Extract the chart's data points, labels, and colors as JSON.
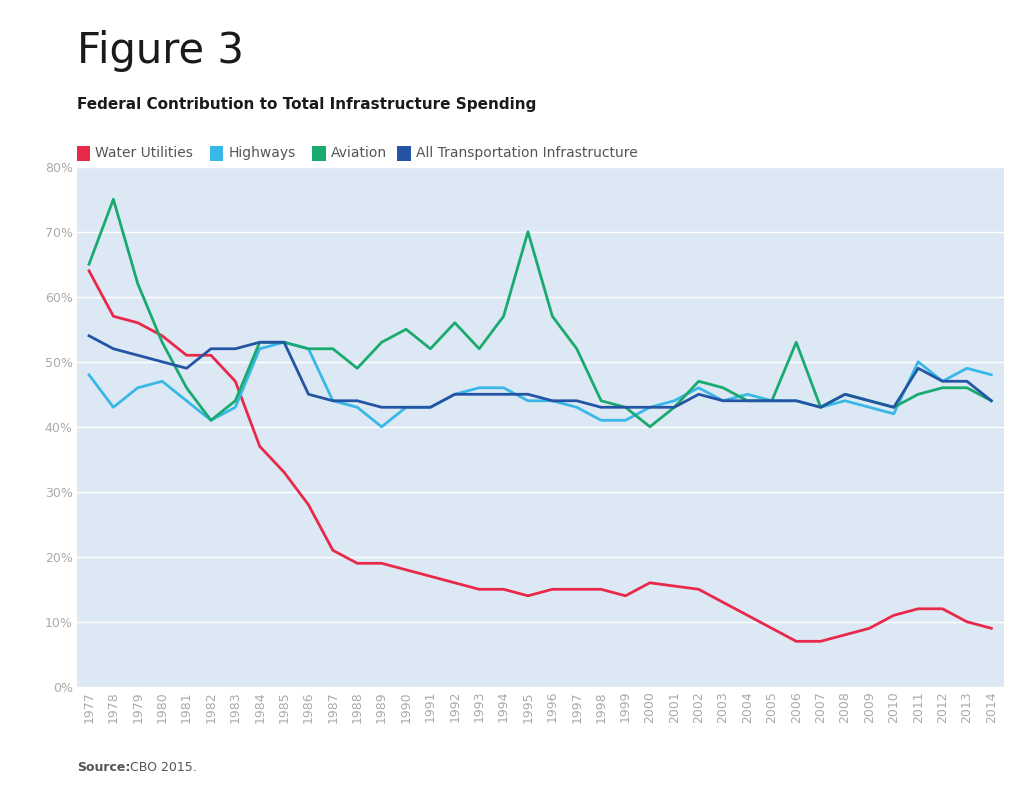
{
  "title": "Figure 3",
  "subtitle": "Federal Contribution to Total Infrastructure Spending",
  "source_bold": "Source:",
  "source_rest": " CBO 2015.",
  "years": [
    1977,
    1978,
    1979,
    1980,
    1981,
    1982,
    1983,
    1984,
    1985,
    1986,
    1987,
    1988,
    1989,
    1990,
    1991,
    1992,
    1993,
    1994,
    1995,
    1996,
    1997,
    1998,
    1999,
    2000,
    2001,
    2002,
    2003,
    2004,
    2005,
    2006,
    2007,
    2008,
    2009,
    2010,
    2011,
    2012,
    2013,
    2014
  ],
  "water_utilities": [
    0.64,
    0.57,
    0.56,
    0.54,
    0.51,
    0.51,
    0.47,
    0.37,
    0.33,
    0.28,
    0.21,
    0.19,
    0.19,
    0.18,
    0.17,
    0.16,
    0.15,
    0.15,
    0.14,
    0.15,
    0.15,
    0.15,
    0.14,
    0.16,
    0.155,
    0.15,
    0.13,
    0.11,
    0.09,
    0.07,
    0.07,
    0.08,
    0.09,
    0.11,
    0.12,
    0.12,
    0.1,
    0.09
  ],
  "highways": [
    0.48,
    0.43,
    0.46,
    0.47,
    0.44,
    0.41,
    0.43,
    0.52,
    0.53,
    0.52,
    0.44,
    0.43,
    0.4,
    0.43,
    0.43,
    0.45,
    0.46,
    0.46,
    0.44,
    0.44,
    0.43,
    0.41,
    0.41,
    0.43,
    0.44,
    0.46,
    0.44,
    0.45,
    0.44,
    0.44,
    0.43,
    0.44,
    0.43,
    0.42,
    0.5,
    0.47,
    0.49,
    0.48
  ],
  "aviation": [
    0.65,
    0.75,
    0.62,
    0.53,
    0.46,
    0.41,
    0.44,
    0.53,
    0.53,
    0.52,
    0.52,
    0.49,
    0.53,
    0.55,
    0.52,
    0.56,
    0.52,
    0.57,
    0.7,
    0.57,
    0.52,
    0.44,
    0.43,
    0.4,
    0.43,
    0.47,
    0.46,
    0.44,
    0.44,
    0.53,
    0.43,
    0.45,
    0.44,
    0.43,
    0.45,
    0.46,
    0.46,
    0.44
  ],
  "all_transport": [
    0.54,
    0.52,
    0.51,
    0.5,
    0.49,
    0.52,
    0.52,
    0.53,
    0.53,
    0.45,
    0.44,
    0.44,
    0.43,
    0.43,
    0.43,
    0.45,
    0.45,
    0.45,
    0.45,
    0.44,
    0.44,
    0.43,
    0.43,
    0.43,
    0.43,
    0.45,
    0.44,
    0.44,
    0.44,
    0.44,
    0.43,
    0.45,
    0.44,
    0.43,
    0.49,
    0.47,
    0.47,
    0.44
  ],
  "color_water": "#e8294a",
  "color_highways": "#39b8e8",
  "color_aviation": "#1aaa6e",
  "color_all_transport": "#2455a4",
  "bg_color": "#dce9f5",
  "fig_bg": "#ffffff",
  "line_width": 2.0,
  "ylim_min": 0.0,
  "ylim_max": 0.8,
  "yticks": [
    0.0,
    0.1,
    0.2,
    0.3,
    0.4,
    0.5,
    0.6,
    0.7,
    0.8
  ],
  "ytick_labels": [
    "0%",
    "10%",
    "20%",
    "30%",
    "40%",
    "50%",
    "60%",
    "70%",
    "80%"
  ],
  "title_fontsize": 30,
  "subtitle_fontsize": 11,
  "legend_fontsize": 10,
  "tick_fontsize": 9,
  "source_fontsize": 9,
  "legend_labels": [
    "Water Utilities",
    "Highways",
    "Aviation",
    "All Transportation Infrastructure"
  ],
  "legend_colors": [
    "#e8294a",
    "#39b8e8",
    "#1aaa6e",
    "#2455a4"
  ],
  "grid_color": "#ffffff",
  "tick_color": "#aaaaaa",
  "text_color": "#333333"
}
